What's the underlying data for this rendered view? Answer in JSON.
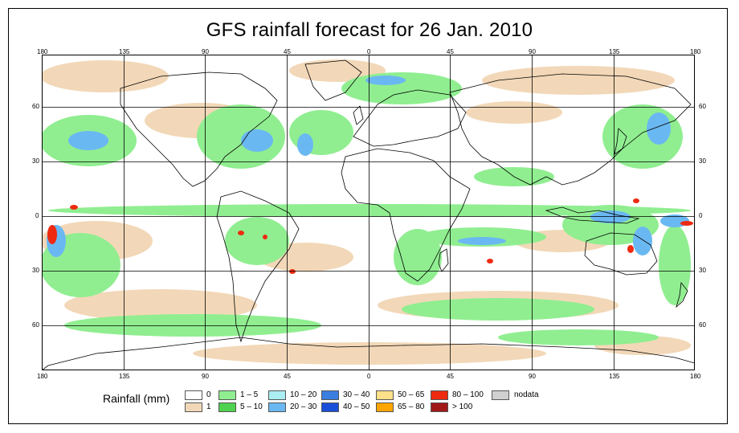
{
  "title": "GFS rainfall forecast for 26 Jan. 2010",
  "axes": {
    "lon_ticks": [
      "180",
      "135",
      "90",
      "45",
      "0",
      "45",
      "90",
      "135",
      "180"
    ],
    "lat_ticks": [
      "60",
      "30",
      "0",
      "30",
      "60"
    ]
  },
  "legend": {
    "title": "Rainfall (mm)",
    "items": [
      {
        "label": "0",
        "color": "#ffffff"
      },
      {
        "label": "1",
        "color": "#f2d8b8"
      },
      {
        "label": "1 – 5",
        "color": "#90ee90"
      },
      {
        "label": "5 – 10",
        "color": "#4fd24f"
      },
      {
        "label": "10 – 20",
        "color": "#aaeef2"
      },
      {
        "label": "20 – 30",
        "color": "#6ab8f2"
      },
      {
        "label": "30 – 40",
        "color": "#3a7ee0"
      },
      {
        "label": "40 – 50",
        "color": "#1a4fd8"
      },
      {
        "label": "50 – 65",
        "color": "#ffe08a"
      },
      {
        "label": "65 – 80",
        "color": "#ffa500"
      },
      {
        "label": "80 – 100",
        "color": "#ee2a10"
      },
      {
        "label": "> 100",
        "color": "#a01818"
      },
      {
        "label": "nodata",
        "color": "#d0d0d0"
      }
    ]
  },
  "colors": {
    "land_outline": "#000000",
    "grid": "#000000"
  }
}
